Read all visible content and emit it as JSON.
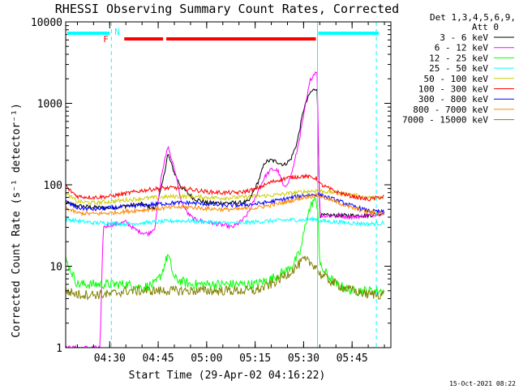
{
  "chart_data": {
    "type": "line",
    "title": "RHESSI Observing Summary Count Rates, Corrected",
    "xlabel": "Start Time (29-Apr-02 04:16:22)",
    "ylabel": "Corrected Count Rate (s⁻¹ detector⁻¹)",
    "yscale": "log",
    "ylim": [
      1,
      10000
    ],
    "y_ticks": [
      {
        "value": 1,
        "label": "1"
      },
      {
        "value": 10,
        "label": "10"
      },
      {
        "value": 100,
        "label": "100"
      },
      {
        "value": 1000,
        "label": "1000"
      },
      {
        "value": 10000,
        "label": "10000"
      }
    ],
    "xlim_minutes": [
      256.37,
      357
    ],
    "x_ticks": [
      {
        "minute": 270,
        "label": "04:30"
      },
      {
        "minute": 285,
        "label": "04:45"
      },
      {
        "minute": 300,
        "label": "05:00"
      },
      {
        "minute": 315,
        "label": "05:15"
      },
      {
        "minute": 330,
        "label": "05:30"
      },
      {
        "minute": 345,
        "label": "05:45"
      }
    ],
    "legend_header": [
      "Det 1,3,4,5,6,9,",
      "Att 0"
    ],
    "legend_position": "top-right, outside plot",
    "series": [
      {
        "name": "3 - 6 keV",
        "color": "#000000",
        "x": [
          256.4,
          260,
          265,
          270,
          275,
          280,
          284,
          286,
          288,
          290,
          292,
          294,
          296,
          300,
          305,
          310,
          313,
          316,
          318,
          320,
          322,
          324,
          326,
          328,
          330,
          332,
          333.5,
          334.2,
          335,
          340,
          345,
          350,
          355
        ],
        "y": [
          60,
          55,
          53,
          52,
          55,
          58,
          50,
          90,
          240,
          140,
          95,
          80,
          68,
          60,
          60,
          60,
          62,
          110,
          190,
          200,
          190,
          175,
          205,
          330,
          850,
          1350,
          1500,
          1550,
          42,
          42,
          42,
          42,
          45
        ]
      },
      {
        "name": "6 - 12 keV",
        "color": "#ff00ff",
        "x": [
          256.4,
          262,
          265,
          267,
          268,
          270,
          272,
          275,
          278,
          280,
          282,
          284,
          286,
          288,
          290,
          292,
          294,
          296,
          300,
          305,
          308,
          310,
          312,
          314,
          316,
          318,
          320,
          322,
          324,
          326,
          328,
          330,
          332,
          333.5,
          334.2,
          335,
          340,
          345,
          350,
          355
        ],
        "y": [
          1,
          1,
          1,
          1,
          30,
          32,
          33,
          35,
          28,
          26,
          25,
          30,
          130,
          300,
          160,
          65,
          45,
          38,
          35,
          32,
          30,
          34,
          40,
          55,
          85,
          125,
          155,
          150,
          90,
          125,
          260,
          700,
          1900,
          2400,
          2500,
          42,
          42,
          40,
          42,
          45
        ]
      },
      {
        "name": "12 - 25 keV",
        "color": "#00ff00",
        "x": [
          256.4,
          260,
          265,
          270,
          275,
          280,
          284,
          286,
          288,
          290,
          295,
          300,
          310,
          315,
          320,
          325,
          327,
          329,
          331,
          333,
          334,
          334.5,
          335,
          340,
          345,
          350,
          355
        ],
        "y": [
          12,
          6,
          6,
          6,
          6,
          5.5,
          6,
          8,
          14,
          7,
          6,
          6,
          6,
          6,
          7,
          9,
          11,
          15,
          40,
          65,
          60,
          50,
          10,
          6,
          5,
          5,
          5
        ]
      },
      {
        "name": "25 - 50 keV",
        "color": "#00ffff",
        "x": [
          256.4,
          260,
          265,
          270,
          275,
          280,
          285,
          290,
          295,
          300,
          305,
          310,
          315,
          320,
          325,
          330,
          334,
          335,
          340,
          345,
          350,
          355
        ],
        "y": [
          38,
          36,
          34,
          34,
          33,
          34,
          35,
          36,
          36,
          35,
          34,
          34,
          35,
          36,
          37,
          37,
          38,
          36,
          35,
          34,
          33,
          34
        ]
      },
      {
        "name": "50 - 100 keV",
        "color": "#cccc00",
        "x": [
          256.4,
          260,
          265,
          270,
          275,
          280,
          285,
          290,
          295,
          300,
          305,
          310,
          315,
          320,
          325,
          330,
          334,
          335,
          340,
          345,
          350,
          355
        ],
        "y": [
          78,
          62,
          60,
          62,
          65,
          68,
          70,
          72,
          72,
          70,
          69,
          70,
          72,
          74,
          78,
          82,
          85,
          84,
          80,
          75,
          70,
          68
        ]
      },
      {
        "name": "100 - 300 keV",
        "color": "#ff0000",
        "x": [
          256.4,
          257,
          260,
          265,
          270,
          275,
          280,
          285,
          290,
          295,
          300,
          305,
          310,
          315,
          320,
          325,
          330,
          334,
          335,
          340,
          345,
          350,
          355
        ],
        "y": [
          100,
          90,
          72,
          70,
          72,
          78,
          85,
          90,
          92,
          88,
          82,
          80,
          80,
          88,
          108,
          122,
          128,
          120,
          102,
          82,
          72,
          66,
          72
        ]
      },
      {
        "name": "300 - 800 keV",
        "color": "#0000ff",
        "x": [
          256.4,
          260,
          265,
          270,
          275,
          280,
          285,
          290,
          295,
          300,
          305,
          310,
          315,
          320,
          325,
          330,
          334,
          335,
          340,
          345,
          350,
          355
        ],
        "y": [
          62,
          52,
          50,
          52,
          54,
          56,
          58,
          60,
          60,
          58,
          56,
          56,
          58,
          62,
          68,
          74,
          76,
          75,
          65,
          55,
          48,
          46
        ]
      },
      {
        "name": "800 - 7000 keV",
        "color": "#ff8800",
        "x": [
          256.4,
          260,
          265,
          270,
          275,
          280,
          285,
          290,
          295,
          300,
          305,
          310,
          315,
          320,
          325,
          330,
          334,
          335,
          340,
          345,
          350,
          355
        ],
        "y": [
          52,
          45,
          44,
          45,
          47,
          49,
          51,
          53,
          53,
          51,
          50,
          50,
          52,
          56,
          62,
          70,
          74,
          73,
          62,
          52,
          46,
          44
        ]
      },
      {
        "name": "7000 - 15000 keV",
        "color": "#808000",
        "x": [
          256.4,
          260,
          265,
          270,
          275,
          280,
          285,
          290,
          295,
          300,
          305,
          310,
          315,
          320,
          325,
          328,
          330,
          332,
          334,
          335,
          340,
          345,
          350,
          355
        ],
        "y": [
          5,
          4.5,
          4.5,
          4.5,
          5,
          5,
          5,
          5,
          5,
          5,
          5,
          5,
          5,
          6,
          8,
          10,
          12,
          11,
          10,
          8,
          6,
          5,
          4.5,
          4.5
        ]
      }
    ],
    "annotations": {
      "top_bar_color": "#00ffff",
      "top_bar_label": "N",
      "flare_bar_color": "#ff0000",
      "flare_bar_label": "F",
      "cyan_dashed_lines_minutes": [
        270.5,
        352.5
      ],
      "cyan_solid_line_minute": 334.3
    }
  },
  "footer_timestamp": "15-Oct-2021 08:22"
}
